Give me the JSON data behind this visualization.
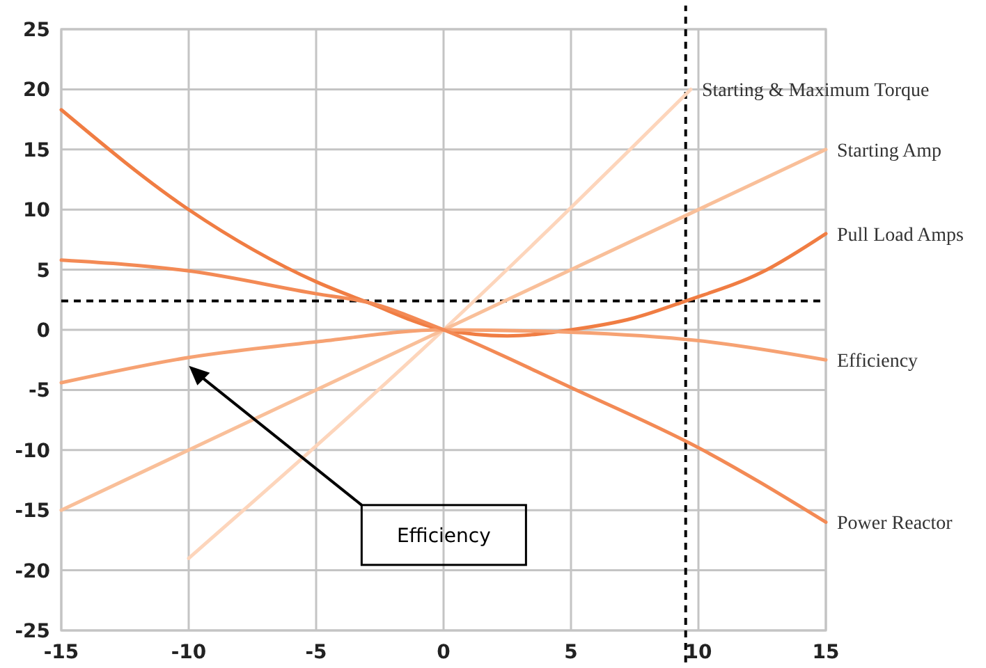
{
  "chart_data": {
    "type": "line",
    "xlim": [
      -15,
      15
    ],
    "ylim": [
      -25,
      25
    ],
    "xticks": [
      -15,
      -10,
      -5,
      0,
      5,
      10,
      15
    ],
    "yticks": [
      -25,
      -20,
      -15,
      -10,
      -5,
      0,
      5,
      10,
      15,
      20,
      25
    ],
    "grid": true,
    "line_style": "solid",
    "marker": "none",
    "series": [
      {
        "name": "Starting & Maximum Torque",
        "color": "#fdd5bb",
        "x": [
          -10,
          0,
          9.7
        ],
        "values": [
          -19,
          0,
          20
        ]
      },
      {
        "name": "Starting Amp",
        "color": "#f9bf99",
        "x": [
          -15,
          0,
          15
        ],
        "values": [
          -15,
          0,
          15
        ]
      },
      {
        "name": "Pull Load Amps",
        "color": "#f07d43",
        "x": [
          -15,
          -10,
          -5,
          -3,
          0,
          2.5,
          5,
          7.5,
          9.5,
          12.5,
          15
        ],
        "values": [
          18.3,
          10,
          4,
          2.3,
          0,
          -0.5,
          0,
          1,
          2.4,
          4.8,
          8
        ]
      },
      {
        "name": "Efficiency",
        "color": "#f6a273",
        "x": [
          -15,
          -10,
          -5,
          0,
          5,
          10,
          15
        ],
        "values": [
          -4.4,
          -2.3,
          -1,
          0,
          -0.2,
          -0.9,
          -2.5
        ]
      },
      {
        "name": "Power Reactor",
        "color": "#f38a55",
        "x": [
          -15,
          -10,
          -5,
          -3,
          0,
          5,
          10,
          15
        ],
        "values": [
          5.8,
          4.9,
          3,
          2.3,
          0,
          -4.8,
          -9.8,
          -16
        ]
      }
    ],
    "ref_lines": [
      {
        "axis": "y",
        "value": 2.4,
        "color": "#000000",
        "line_style": "dashed"
      },
      {
        "axis": "x",
        "value": 9.5,
        "color": "#000000",
        "line_style": "dashed"
      }
    ],
    "annotations": [
      "Efficiency"
    ]
  }
}
